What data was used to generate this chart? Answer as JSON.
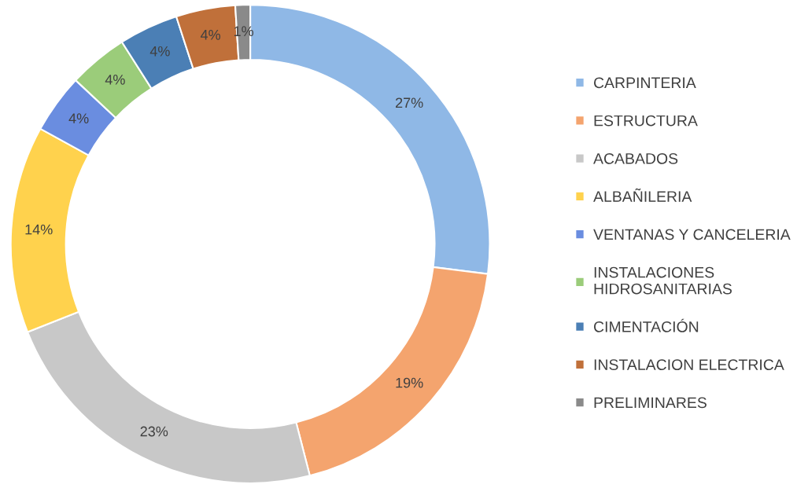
{
  "chart_data": {
    "type": "donut",
    "categories": [
      "CARPINTERIA",
      "ESTRUCTURA",
      "ACABADOS",
      "ALBAÑILERIA",
      "VENTANAS Y CANCELERIA",
      "INSTALACIONES HIDROSANITARIAS",
      "CIMENTACIÓN",
      "INSTALACION ELECTRICA",
      "PRELIMINARES"
    ],
    "values": [
      27,
      19,
      23,
      14,
      4,
      4,
      4,
      4,
      1
    ],
    "colors": [
      "#8fb8e6",
      "#f4a46e",
      "#c8c8c8",
      "#ffd24d",
      "#6a8de0",
      "#9bcc7a",
      "#4b7fb5",
      "#c0703a",
      "#8a8a8a"
    ],
    "value_labels": [
      "27%",
      "19%",
      "23%",
      "14%",
      "4%",
      "4%",
      "4%",
      "4%",
      "1%"
    ],
    "legend": "right"
  }
}
